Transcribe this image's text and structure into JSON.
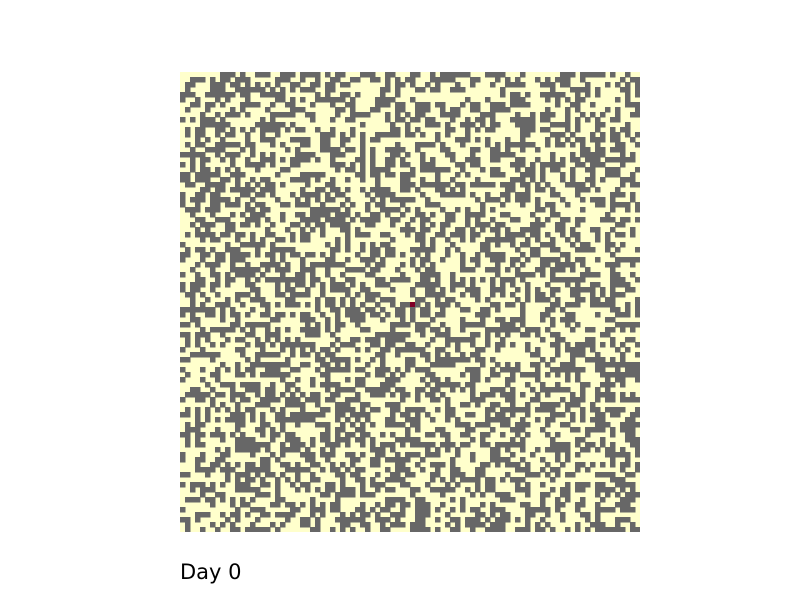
{
  "chart_data": {
    "type": "heatmap",
    "title": "",
    "xlabel": "",
    "ylabel": "",
    "rows": 92,
    "cols": 92,
    "grid": false,
    "states": [
      {
        "code": 0,
        "color": "#ffffcc"
      },
      {
        "code": 1,
        "color": "#676767"
      },
      {
        "code": 2,
        "color": "#800026"
      }
    ],
    "dark_fraction": 0.45,
    "seed": 20240611,
    "marked_cell": {
      "row": 46,
      "col": 46,
      "state": 2
    }
  },
  "caption": {
    "day_label": "Day 0"
  }
}
